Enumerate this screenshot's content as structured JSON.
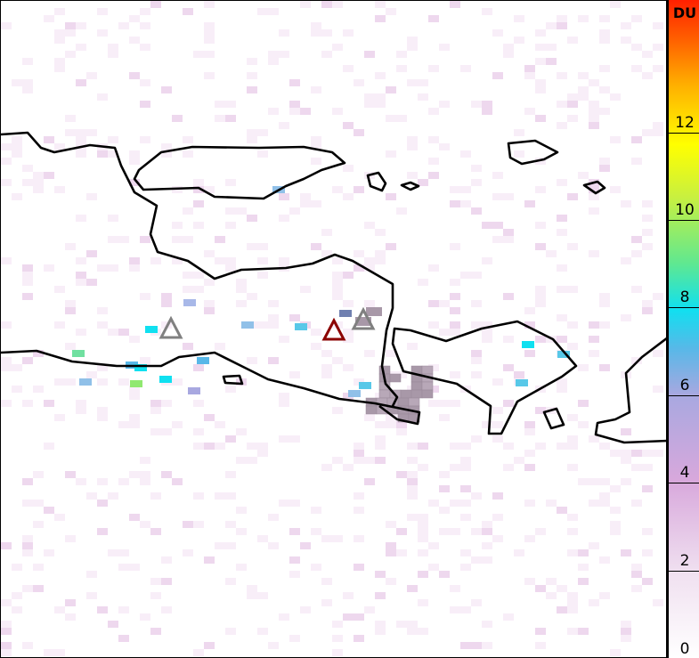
{
  "colorbar": {
    "unit": "DU",
    "ticks": [
      "0",
      "2",
      "4",
      "6",
      "8",
      "10",
      "12"
    ],
    "range": [
      0,
      15
    ],
    "colors": [
      "#ffffff",
      "#f0e0f0",
      "#d8a8dc",
      "#a8a8e0",
      "#58b8e8",
      "#10e0f0",
      "#60e890",
      "#c8f040",
      "#ffff00",
      "#ffb000",
      "#ff6000",
      "#ff2000"
    ]
  },
  "markers": [
    {
      "type": "volcano-triangle",
      "color": "#808080"
    },
    {
      "type": "volcano-triangle",
      "color": "#8b0000"
    },
    {
      "type": "volcano-triangle",
      "color": "#808080"
    }
  ],
  "coastline_color": "#000000"
}
